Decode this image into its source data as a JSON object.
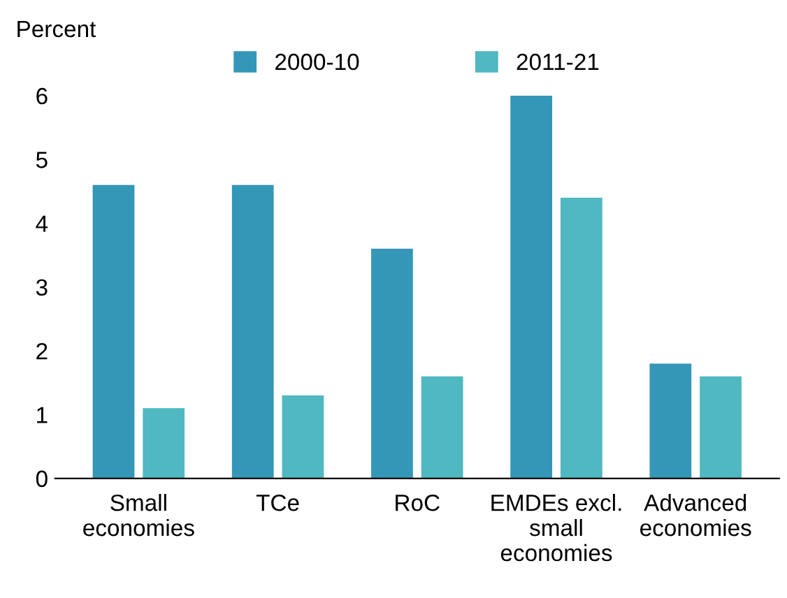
{
  "chart_data": {
    "type": "bar",
    "ylabel": "Percent",
    "categories": [
      "Small\neconomies",
      "TCe",
      "RoC",
      "EMDEs excl.\nsmall\neconomies",
      "Advanced\neconomies"
    ],
    "series": [
      {
        "name": "2000-10",
        "color": "#3497b8",
        "values": [
          4.6,
          4.6,
          3.6,
          6.0,
          1.8
        ]
      },
      {
        "name": "2011-21",
        "color": "#4fb8c0",
        "values": [
          1.1,
          1.3,
          1.6,
          4.4,
          1.6
        ]
      }
    ],
    "ylim": [
      0,
      6
    ],
    "yticks": [
      0,
      1,
      2,
      3,
      4,
      5,
      6
    ],
    "grid": false,
    "legend": "top"
  }
}
